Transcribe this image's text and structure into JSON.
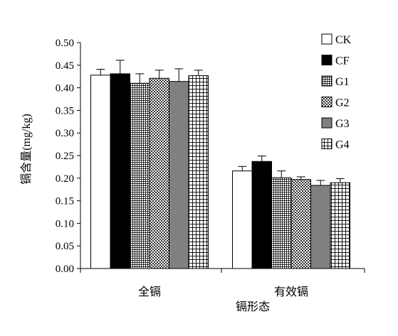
{
  "chart_data": {
    "type": "bar",
    "title": "",
    "xlabel": "镉形态",
    "ylabel": "镉含量(mg/kg)",
    "ylim": [
      0,
      0.5
    ],
    "yticks": [
      "0.00",
      "0.05",
      "0.10",
      "0.15",
      "0.20",
      "0.25",
      "0.30",
      "0.35",
      "0.40",
      "0.45",
      "0.50"
    ],
    "categories": [
      "全镉",
      "有效镉"
    ],
    "legend_position": "top-right",
    "grid": false,
    "error_bars": true,
    "series": [
      {
        "name": "CK",
        "values": [
          0.428,
          0.216
        ],
        "errors": [
          0.013,
          0.01
        ],
        "fill": "#ffffff",
        "pattern": "solid"
      },
      {
        "name": "CF",
        "values": [
          0.431,
          0.237
        ],
        "errors": [
          0.03,
          0.012
        ],
        "fill": "#000000",
        "pattern": "solid"
      },
      {
        "name": "G1",
        "values": [
          0.41,
          0.201
        ],
        "errors": [
          0.021,
          0.015
        ],
        "fill": "#ffffff",
        "pattern": "grid-dense"
      },
      {
        "name": "G2",
        "values": [
          0.421,
          0.197
        ],
        "errors": [
          0.018,
          0.006
        ],
        "fill": "#ffffff",
        "pattern": "checker"
      },
      {
        "name": "G3",
        "values": [
          0.414,
          0.184
        ],
        "errors": [
          0.028,
          0.011
        ],
        "fill": "#808080",
        "pattern": "solid"
      },
      {
        "name": "G4",
        "values": [
          0.427,
          0.19
        ],
        "errors": [
          0.012,
          0.009
        ],
        "fill": "#ffffff",
        "pattern": "grid-coarse"
      }
    ]
  }
}
